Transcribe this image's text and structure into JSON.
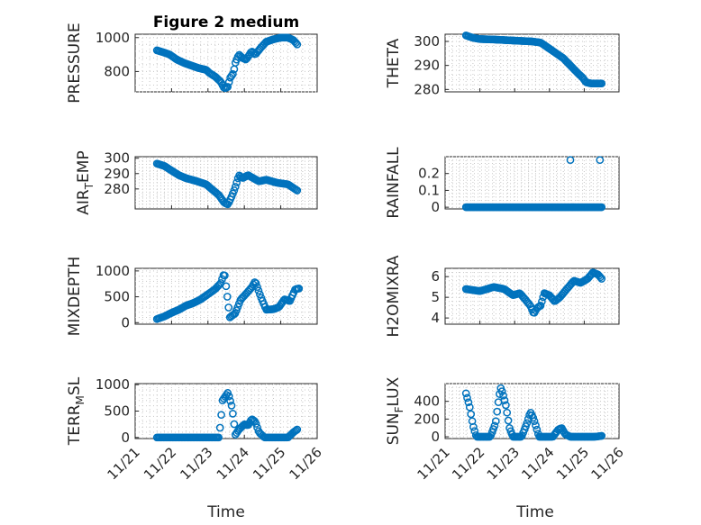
{
  "figure_title": "Figure 2 medium",
  "x_tick_labels": [
    "11/21",
    "11/22",
    "11/23",
    "11/24",
    "11/25",
    "11/26"
  ],
  "x_label": "Time",
  "marker_color": "#0072BD",
  "chart_data": [
    {
      "type": "scatter",
      "id": "pressure",
      "ylabel": "PRESSURE",
      "title": "Figure 2 medium",
      "xlim": [
        0,
        5
      ],
      "ylim": [
        680,
        1020
      ],
      "yticks": [
        800,
        1000
      ],
      "ytick_labels": [
        "800",
        "1000"
      ],
      "x_tick_labels": [],
      "xlabel": "",
      "keypoints": [
        [
          0.6,
          925
        ],
        [
          0.75,
          915
        ],
        [
          0.95,
          900
        ],
        [
          1.15,
          870
        ],
        [
          1.35,
          850
        ],
        [
          1.55,
          835
        ],
        [
          1.75,
          820
        ],
        [
          1.95,
          810
        ],
        [
          2.05,
          790
        ],
        [
          2.2,
          770
        ],
        [
          2.35,
          740
        ],
        [
          2.45,
          700
        ],
        [
          2.55,
          710
        ],
        [
          2.6,
          760
        ],
        [
          2.7,
          790
        ],
        [
          2.75,
          850
        ],
        [
          2.85,
          900
        ],
        [
          2.95,
          880
        ],
        [
          3.05,
          870
        ],
        [
          3.2,
          920
        ],
        [
          3.3,
          900
        ],
        [
          3.45,
          940
        ],
        [
          3.6,
          975
        ],
        [
          3.8,
          990
        ],
        [
          4.0,
          1000
        ],
        [
          4.2,
          1000
        ],
        [
          4.35,
          985
        ],
        [
          4.45,
          960
        ]
      ],
      "count": 110
    },
    {
      "type": "scatter",
      "id": "theta",
      "ylabel": "THETA",
      "xlim": [
        0,
        5
      ],
      "ylim": [
        279,
        303
      ],
      "yticks": [
        280,
        290,
        300
      ],
      "ytick_labels": [
        "280",
        "290",
        "300"
      ],
      "x_tick_labels": [],
      "xlabel": "",
      "keypoints": [
        [
          0.6,
          302.5
        ],
        [
          0.8,
          301.5
        ],
        [
          1.0,
          301.0
        ],
        [
          1.4,
          300.8
        ],
        [
          1.8,
          300.5
        ],
        [
          2.2,
          300.2
        ],
        [
          2.5,
          300.0
        ],
        [
          2.75,
          299.5
        ],
        [
          3.0,
          297.0
        ],
        [
          3.2,
          295.0
        ],
        [
          3.4,
          293.0
        ],
        [
          3.6,
          290.0
        ],
        [
          3.8,
          287.0
        ],
        [
          3.95,
          285.0
        ],
        [
          4.05,
          283.0
        ],
        [
          4.2,
          282.5
        ],
        [
          4.5,
          282.5
        ]
      ],
      "count": 110
    },
    {
      "type": "scatter",
      "id": "air_temp",
      "ylabel": "AIR_TEMP",
      "ylabel_main": "AIR",
      "ylabel_sub": "T",
      "ylabel_rest": "EMP",
      "xlim": [
        0,
        5
      ],
      "ylim": [
        267,
        301
      ],
      "yticks": [
        280,
        290,
        300
      ],
      "ytick_labels": [
        "280",
        "290",
        "300"
      ],
      "x_tick_labels": [],
      "xlabel": "",
      "keypoints": [
        [
          0.6,
          296.5
        ],
        [
          0.8,
          295
        ],
        [
          1.0,
          292
        ],
        [
          1.2,
          289
        ],
        [
          1.4,
          287
        ],
        [
          1.7,
          285
        ],
        [
          1.95,
          283
        ],
        [
          2.1,
          280
        ],
        [
          2.3,
          276
        ],
        [
          2.45,
          271
        ],
        [
          2.55,
          270
        ],
        [
          2.65,
          275
        ],
        [
          2.75,
          281
        ],
        [
          2.85,
          289
        ],
        [
          2.95,
          287
        ],
        [
          3.1,
          289
        ],
        [
          3.25,
          287
        ],
        [
          3.4,
          285
        ],
        [
          3.6,
          286
        ],
        [
          3.9,
          284
        ],
        [
          4.2,
          283
        ],
        [
          4.45,
          279
        ]
      ],
      "count": 110
    },
    {
      "type": "scatter",
      "id": "rainfall",
      "ylabel": "RAINFALL",
      "xlim": [
        0,
        5
      ],
      "ylim": [
        -0.01,
        0.3
      ],
      "yticks": [
        0,
        0.1,
        0.2
      ],
      "ytick_labels": [
        "0",
        "0.1",
        "0.2"
      ],
      "x_tick_labels": [],
      "xlabel": "",
      "keypoints": [
        [
          0.6,
          0
        ],
        [
          4.5,
          0
        ]
      ],
      "extra_points": [
        [
          3.6,
          0.28
        ],
        [
          4.45,
          0.28
        ]
      ],
      "count": 110
    },
    {
      "type": "scatter",
      "id": "mixdepth",
      "ylabel": "MIXDEPTH",
      "xlim": [
        0,
        5
      ],
      "ylim": [
        -30,
        1050
      ],
      "yticks": [
        0,
        500,
        1000
      ],
      "ytick_labels": [
        "0",
        "500",
        "1000"
      ],
      "x_tick_labels": [],
      "xlabel": "",
      "keypoints": [
        [
          0.6,
          70
        ],
        [
          0.8,
          120
        ],
        [
          1.0,
          190
        ],
        [
          1.2,
          250
        ],
        [
          1.4,
          330
        ],
        [
          1.6,
          380
        ],
        [
          1.8,
          450
        ],
        [
          2.0,
          550
        ],
        [
          2.2,
          650
        ],
        [
          2.35,
          760
        ],
        [
          2.45,
          970
        ],
        [
          2.55,
          400
        ],
        [
          2.6,
          100
        ],
        [
          2.75,
          180
        ],
        [
          2.9,
          450
        ],
        [
          3.05,
          560
        ],
        [
          3.2,
          680
        ],
        [
          3.3,
          800
        ],
        [
          3.45,
          500
        ],
        [
          3.6,
          250
        ],
        [
          3.8,
          260
        ],
        [
          3.95,
          300
        ],
        [
          4.1,
          450
        ],
        [
          4.25,
          420
        ],
        [
          4.4,
          650
        ],
        [
          4.5,
          660
        ]
      ],
      "count": 110
    },
    {
      "type": "scatter",
      "id": "h2omixra",
      "ylabel": "H2OMIXRA",
      "xlim": [
        0,
        5
      ],
      "ylim": [
        3.7,
        6.4
      ],
      "yticks": [
        4,
        5,
        6
      ],
      "ytick_labels": [
        "4",
        "5",
        "6"
      ],
      "x_tick_labels": [],
      "xlabel": "",
      "keypoints": [
        [
          0.6,
          5.4
        ],
        [
          0.8,
          5.35
        ],
        [
          1.0,
          5.3
        ],
        [
          1.2,
          5.4
        ],
        [
          1.4,
          5.5
        ],
        [
          1.7,
          5.4
        ],
        [
          1.95,
          5.1
        ],
        [
          2.15,
          5.2
        ],
        [
          2.3,
          4.9
        ],
        [
          2.45,
          4.6
        ],
        [
          2.55,
          4.2
        ],
        [
          2.65,
          4.5
        ],
        [
          2.75,
          4.6
        ],
        [
          2.85,
          5.2
        ],
        [
          3.0,
          5.1
        ],
        [
          3.15,
          4.8
        ],
        [
          3.3,
          5.0
        ],
        [
          3.5,
          5.4
        ],
        [
          3.7,
          5.8
        ],
        [
          3.9,
          5.7
        ],
        [
          4.1,
          5.9
        ],
        [
          4.25,
          6.2
        ],
        [
          4.4,
          6.1
        ],
        [
          4.5,
          5.9
        ]
      ],
      "count": 110
    },
    {
      "type": "scatter",
      "id": "terr_msl",
      "ylabel": "TERR_MSL",
      "ylabel_main": "TERR",
      "ylabel_sub": "M",
      "ylabel_rest": "SL",
      "xlim": [
        0,
        5
      ],
      "ylim": [
        -20,
        1020
      ],
      "yticks": [
        0,
        500,
        1000
      ],
      "ytick_labels": [
        "0",
        "500",
        "1000"
      ],
      "x_tick_labels": [
        "11/21",
        "11/22",
        "11/23",
        "11/24",
        "11/25",
        "11/26"
      ],
      "xlabel": "Time",
      "keypoints": [
        [
          0.6,
          0
        ],
        [
          2.3,
          0
        ],
        [
          2.35,
          300
        ],
        [
          2.4,
          700
        ],
        [
          2.5,
          800
        ],
        [
          2.55,
          850
        ],
        [
          2.65,
          600
        ],
        [
          2.7,
          380
        ],
        [
          2.75,
          50
        ],
        [
          2.85,
          150
        ],
        [
          3.0,
          250
        ],
        [
          3.1,
          230
        ],
        [
          3.2,
          350
        ],
        [
          3.3,
          300
        ],
        [
          3.4,
          100
        ],
        [
          3.55,
          0
        ],
        [
          4.2,
          0
        ],
        [
          4.35,
          100
        ],
        [
          4.45,
          150
        ]
      ],
      "count": 110
    },
    {
      "type": "scatter",
      "id": "sun_flux",
      "ylabel": "SUN_FLUX",
      "ylabel_main": "SUN",
      "ylabel_sub": "F",
      "ylabel_rest": "LUX",
      "xlim": [
        0,
        5
      ],
      "ylim": [
        -20,
        600
      ],
      "yticks": [
        0,
        200,
        400
      ],
      "ytick_labels": [
        "0",
        "200",
        "400"
      ],
      "x_tick_labels": [
        "11/21",
        "11/22",
        "11/23",
        "11/24",
        "11/25",
        "11/26"
      ],
      "xlabel": "Time",
      "keypoints": [
        [
          0.6,
          490
        ],
        [
          0.7,
          350
        ],
        [
          0.8,
          130
        ],
        [
          0.9,
          0
        ],
        [
          1.3,
          0
        ],
        [
          1.45,
          150
        ],
        [
          1.55,
          450
        ],
        [
          1.6,
          550
        ],
        [
          1.65,
          500
        ],
        [
          1.75,
          350
        ],
        [
          1.85,
          100
        ],
        [
          1.95,
          0
        ],
        [
          2.2,
          0
        ],
        [
          2.35,
          150
        ],
        [
          2.45,
          280
        ],
        [
          2.55,
          200
        ],
        [
          2.7,
          0
        ],
        [
          3.1,
          0
        ],
        [
          3.25,
          80
        ],
        [
          3.35,
          100
        ],
        [
          3.45,
          30
        ],
        [
          3.6,
          0
        ],
        [
          4.3,
          0
        ],
        [
          4.5,
          10
        ]
      ],
      "count": 110
    }
  ]
}
